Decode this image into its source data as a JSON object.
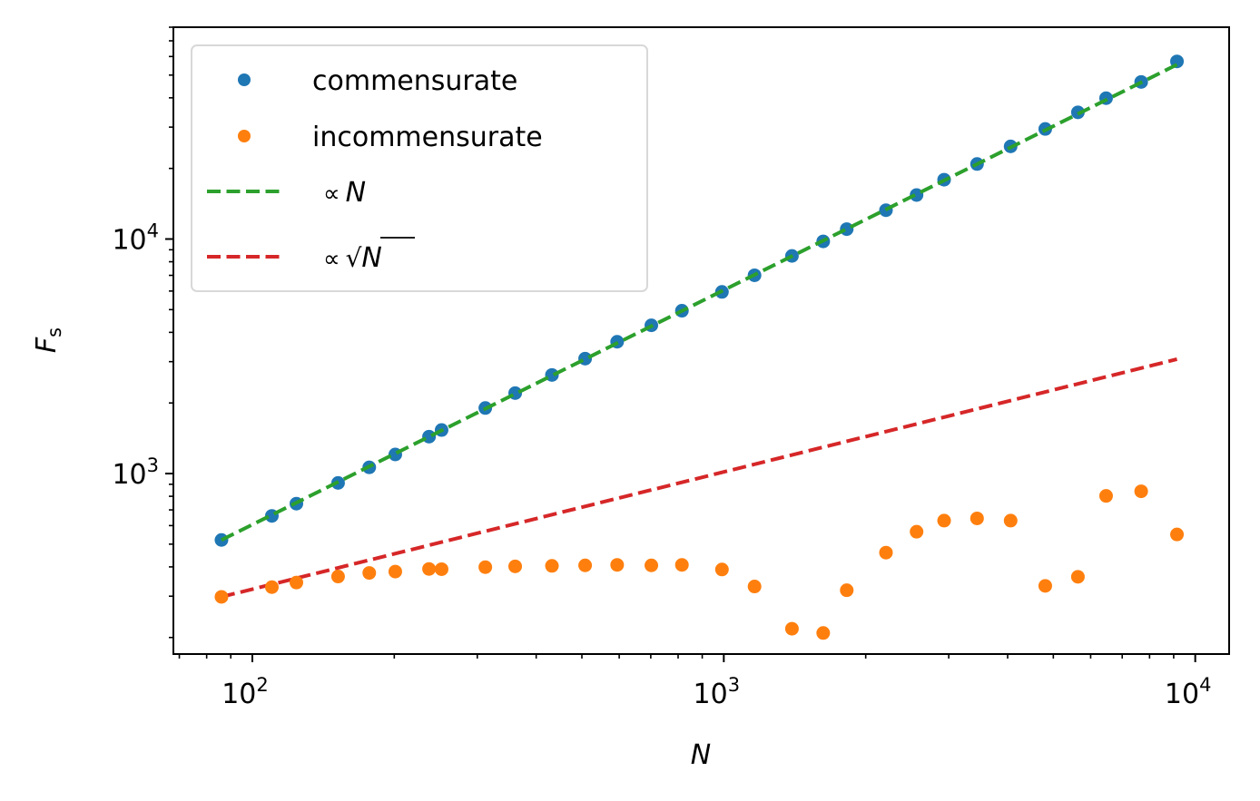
{
  "chart_data": {
    "type": "scatter",
    "x_scale": "log",
    "y_scale": "log",
    "xlim": [
      68,
      11800
    ],
    "ylim": [
      170,
      80000
    ],
    "grid": false,
    "legend_position": "top-left",
    "xlabel": "N",
    "ylabel_main": "F",
    "ylabel_sub": "s",
    "xticks": [
      {
        "value": 100,
        "base": "10",
        "exp": "2"
      },
      {
        "value": 1000,
        "base": "10",
        "exp": "3"
      },
      {
        "value": 10000,
        "base": "10",
        "exp": "4"
      }
    ],
    "yticks": [
      {
        "value": 1000,
        "base": "10",
        "exp": "3"
      },
      {
        "value": 10000,
        "base": "10",
        "exp": "4"
      }
    ],
    "series": [
      {
        "name": "commensurate",
        "kind": "points",
        "color": "#1f77b4",
        "x": [
          86,
          110,
          124,
          152,
          177,
          201,
          237,
          252,
          312,
          361,
          432,
          508,
          594,
          702,
          815,
          991,
          1162,
          1395,
          1625,
          1823,
          2208,
          2564,
          2933,
          3445,
          4059,
          4807,
          5638,
          6470,
          7679,
          9146
        ],
        "y": [
          521,
          660,
          744,
          912,
          1063,
          1206,
          1437,
          1533,
          1903,
          2203,
          2633,
          3091,
          3647,
          4286,
          4946,
          5950,
          7003,
          8471,
          9772,
          11018,
          13270,
          15402,
          17907,
          20887,
          24828,
          29469,
          34681,
          39870,
          46747,
          57180
        ]
      },
      {
        "name": "incommensurate",
        "kind": "points",
        "color": "#ff7f0e",
        "x": [
          86,
          110,
          124,
          152,
          177,
          201,
          237,
          252,
          312,
          361,
          432,
          508,
          594,
          702,
          815,
          991,
          1162,
          1395,
          1625,
          1823,
          2208,
          2564,
          2933,
          3445,
          4059,
          4807,
          5638,
          6470,
          7679,
          9146
        ],
        "y": [
          298,
          328,
          343,
          364,
          377,
          382,
          392,
          391,
          399,
          402,
          404,
          406,
          408,
          406,
          408,
          390,
          330,
          218,
          209,
          318,
          460,
          565,
          630,
          644,
          630,
          332,
          363,
          803,
          840,
          550
        ]
      },
      {
        "name": "∝N",
        "kind": "line",
        "color": "#2ca02c",
        "x": [
          86,
          9146
        ],
        "y": [
          521,
          55400
        ]
      },
      {
        "name": "∝√N",
        "kind": "line",
        "color": "#d62728",
        "x": [
          86,
          9146
        ],
        "y": [
          298,
          3073
        ]
      }
    ]
  },
  "legend": {
    "commensurate_label": "commensurate",
    "incommensurate_label": "incommensurate",
    "prop_symbol": "∝",
    "linear_var": "N",
    "sqrt_symbol": "√",
    "sqrt_var": "N"
  }
}
